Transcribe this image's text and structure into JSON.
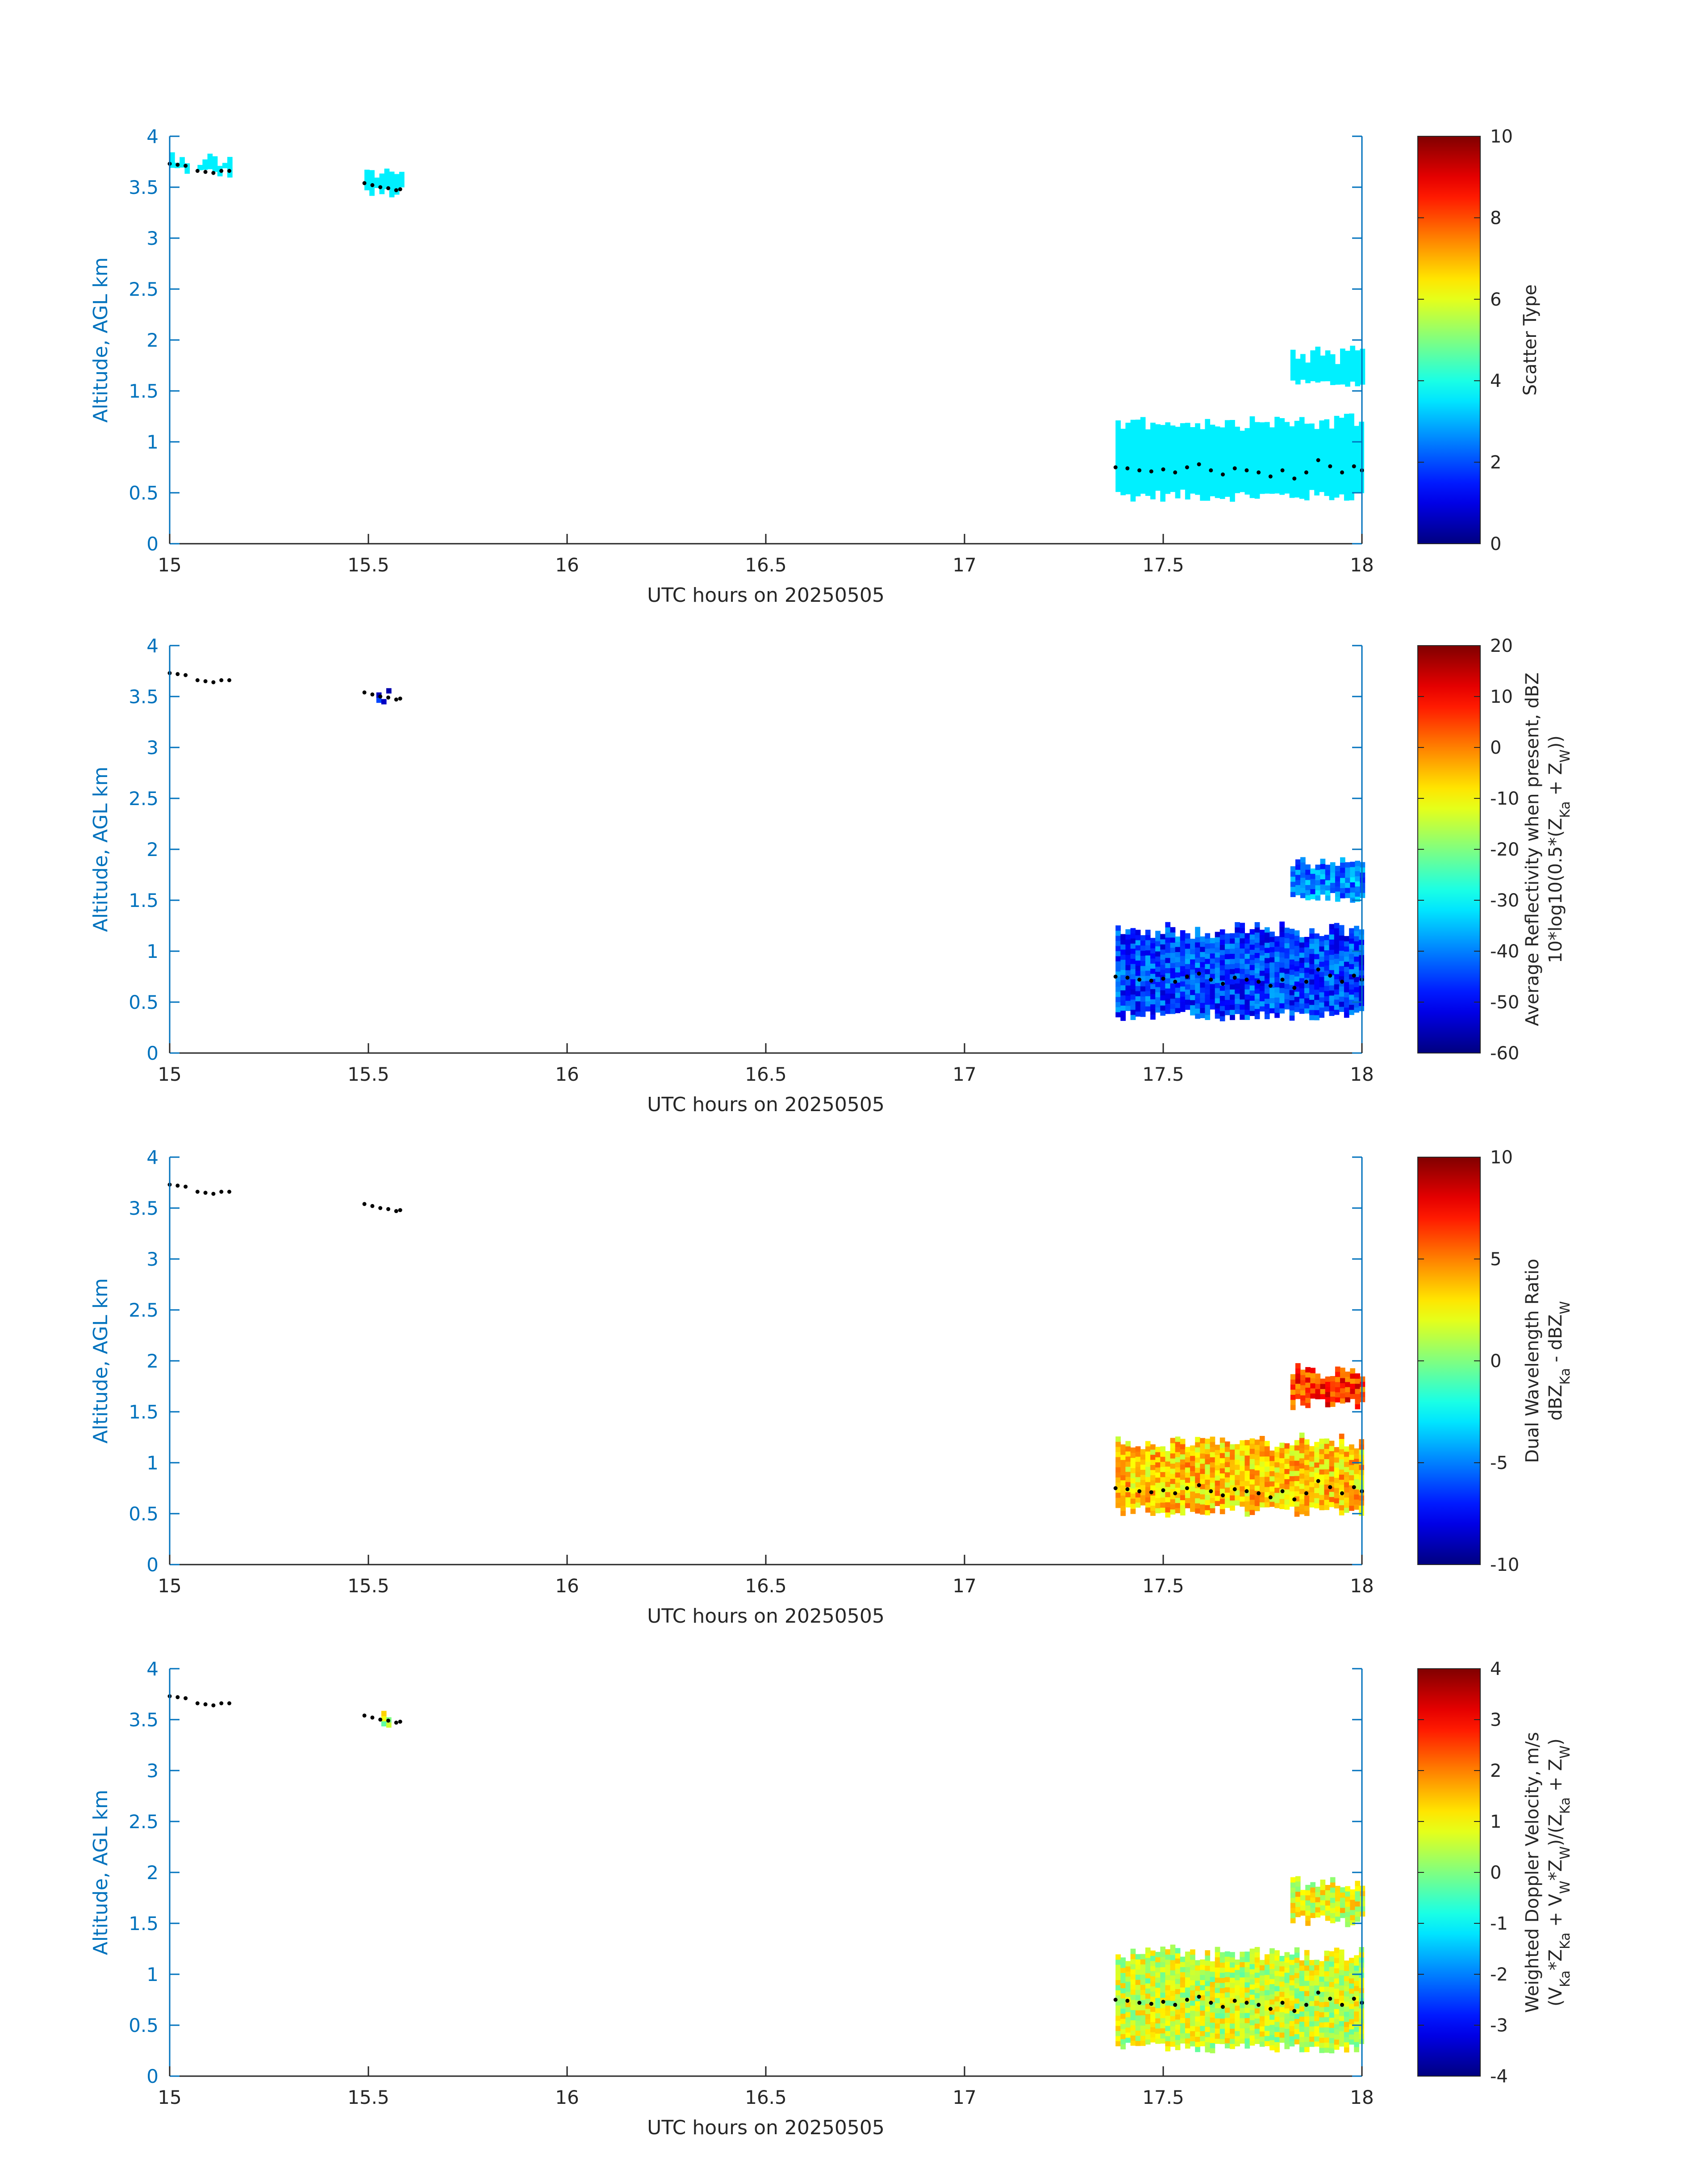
{
  "chart_data": [
    {
      "type": "heatmap",
      "title": "",
      "xlabel": "UTC hours on 20250505",
      "ylabel": "Altitude, AGL km",
      "xlim": [
        15,
        18
      ],
      "ylim": [
        0,
        4
      ],
      "xticks": [
        "15",
        "15.5",
        "16",
        "16.5",
        "17",
        "17.5",
        "18"
      ],
      "yticks": [
        "0",
        "0.5",
        "1",
        "1.5",
        "2",
        "2.5",
        "3",
        "3.5",
        "4"
      ],
      "colorbar": {
        "label_lines": [
          "Scatter Type"
        ],
        "range": [
          0,
          10
        ],
        "ticks": [
          "0",
          "2",
          "4",
          "6",
          "8",
          "10"
        ],
        "colormap": "jet"
      },
      "regions": [
        {
          "x": [
            15.0,
            15.05
          ],
          "y": [
            3.65,
            3.85
          ],
          "value": 3.6
        },
        {
          "x": [
            15.07,
            15.15
          ],
          "y": [
            3.62,
            3.82
          ],
          "value": 3.6
        },
        {
          "x": [
            15.49,
            15.58
          ],
          "y": [
            3.42,
            3.68
          ],
          "value": 3.6
        },
        {
          "x": [
            17.82,
            18.0
          ],
          "y": [
            1.55,
            1.9
          ],
          "value": 3.6
        },
        {
          "x": [
            17.38,
            18.0
          ],
          "y": [
            0.45,
            1.25
          ],
          "value": 3.6
        }
      ]
    },
    {
      "type": "heatmap",
      "title": "",
      "xlabel": "UTC hours on 20250505",
      "ylabel": "Altitude, AGL km",
      "xlim": [
        15,
        18
      ],
      "ylim": [
        0,
        4
      ],
      "xticks": [
        "15",
        "15.5",
        "16",
        "16.5",
        "17",
        "17.5",
        "18"
      ],
      "yticks": [
        "0",
        "0.5",
        "1",
        "1.5",
        "2",
        "2.5",
        "3",
        "3.5",
        "4"
      ],
      "colorbar": {
        "label_lines": [
          "Average Reflectivity when present, dBZ",
          "10*log10(0.5*(Z_Ka + Z_W))"
        ],
        "range": [
          -60,
          20
        ],
        "ticks": [
          "-60",
          "-50",
          "-40",
          "-30",
          "-20",
          "-10",
          "0",
          "10",
          "20"
        ],
        "colormap": "jet"
      },
      "regions": [
        {
          "x": [
            15.52,
            15.55
          ],
          "y": [
            3.45,
            3.58
          ],
          "value": -52
        },
        {
          "x": [
            17.82,
            18.0
          ],
          "y": [
            1.5,
            1.95
          ],
          "value": -40
        },
        {
          "x": [
            17.38,
            18.0
          ],
          "y": [
            0.35,
            1.25
          ],
          "value": -45
        }
      ]
    },
    {
      "type": "heatmap",
      "title": "",
      "xlabel": "UTC hours on 20250505",
      "ylabel": "Altitude, AGL km",
      "xlim": [
        15,
        18
      ],
      "ylim": [
        0,
        4
      ],
      "xticks": [
        "15",
        "15.5",
        "16",
        "16.5",
        "17",
        "17.5",
        "18"
      ],
      "yticks": [
        "0",
        "0.5",
        "1",
        "1.5",
        "2",
        "2.5",
        "3",
        "3.5",
        "4"
      ],
      "colorbar": {
        "label_lines": [
          "Dual Wavelength Ratio",
          "dBZ_Ka - dBZ_W"
        ],
        "range": [
          -10,
          10
        ],
        "ticks": [
          "-10",
          "-5",
          "0",
          "5",
          "10"
        ],
        "colormap": "jet"
      },
      "regions": [
        {
          "x": [
            17.82,
            18.0
          ],
          "y": [
            1.55,
            1.95
          ],
          "value": 6.5
        },
        {
          "x": [
            17.38,
            18.0
          ],
          "y": [
            0.5,
            1.25
          ],
          "value": 3.5
        }
      ]
    },
    {
      "type": "heatmap",
      "title": "",
      "xlabel": "UTC hours on 20250505",
      "ylabel": "Altitude, AGL km",
      "xlim": [
        15,
        18
      ],
      "ylim": [
        0,
        4
      ],
      "xticks": [
        "15",
        "15.5",
        "16",
        "16.5",
        "17",
        "17.5",
        "18"
      ],
      "yticks": [
        "0",
        "0.5",
        "1",
        "1.5",
        "2",
        "2.5",
        "3",
        "3.5",
        "4"
      ],
      "colorbar": {
        "label_lines": [
          "Weighted Doppler Velocity, m/s",
          "(V_Ka*Z_Ka + V_W*Z_W)/(Z_Ka + Z_W)"
        ],
        "range": [
          -4,
          4
        ],
        "ticks": [
          "-4",
          "-3",
          "-2",
          "-1",
          "0",
          "1",
          "2",
          "3",
          "4"
        ],
        "colormap": "jet"
      },
      "regions": [
        {
          "x": [
            15.52,
            15.55
          ],
          "y": [
            3.45,
            3.58
          ],
          "value": 0.5
        },
        {
          "x": [
            17.82,
            18.0
          ],
          "y": [
            1.5,
            1.95
          ],
          "value": 0.8
        },
        {
          "x": [
            17.38,
            18.0
          ],
          "y": [
            0.25,
            1.25
          ],
          "value": 0.6
        }
      ]
    }
  ],
  "marker_track": {
    "times": [
      15.0,
      15.02,
      15.04,
      15.07,
      15.09,
      15.11,
      15.13,
      15.15,
      15.49,
      15.51,
      15.53,
      15.55,
      15.57,
      15.58,
      17.38,
      17.41,
      17.44,
      17.47,
      17.5,
      17.53,
      17.56,
      17.59,
      17.62,
      17.65,
      17.68,
      17.71,
      17.74,
      17.77,
      17.8,
      17.83,
      17.86,
      17.89,
      17.92,
      17.95,
      17.98,
      18.0
    ],
    "altitudes": [
      3.73,
      3.72,
      3.71,
      3.66,
      3.65,
      3.64,
      3.66,
      3.66,
      3.54,
      3.52,
      3.5,
      3.49,
      3.47,
      3.48,
      0.75,
      0.74,
      0.72,
      0.71,
      0.73,
      0.7,
      0.75,
      0.78,
      0.72,
      0.68,
      0.74,
      0.72,
      0.7,
      0.66,
      0.72,
      0.64,
      0.7,
      0.82,
      0.76,
      0.7,
      0.76,
      0.72
    ]
  }
}
